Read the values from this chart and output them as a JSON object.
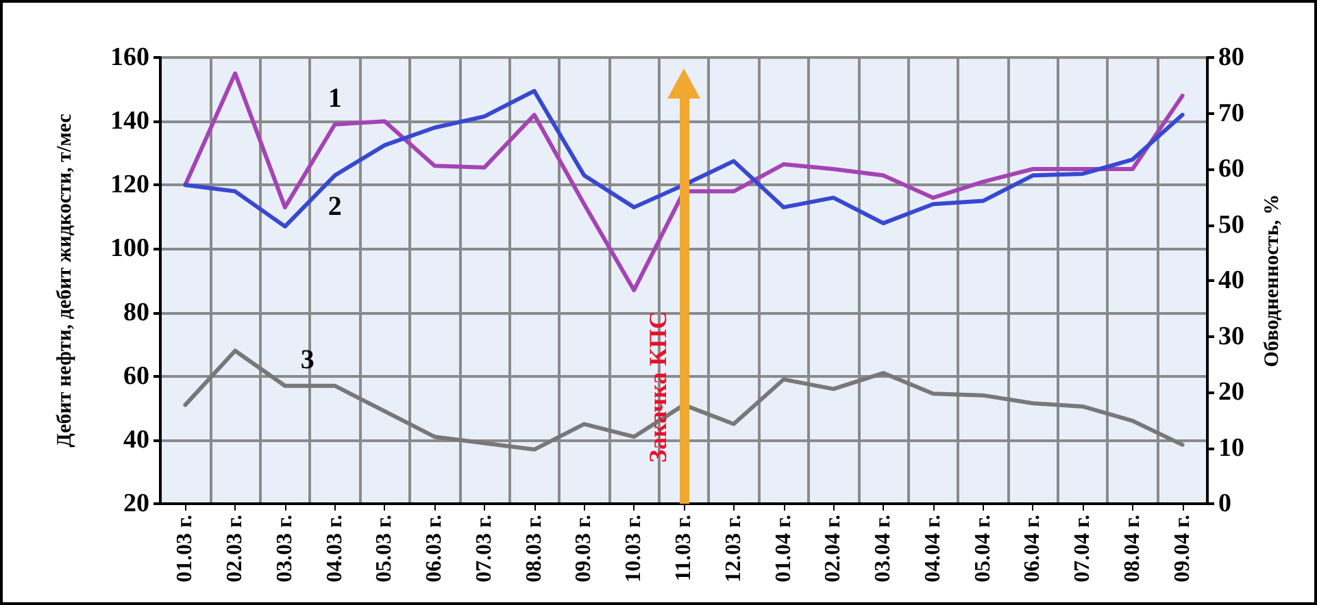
{
  "chart_data": {
    "type": "line",
    "ylabel": "Дебит нефти, дебит жидкости, т/мес",
    "y2label": "Обводненность, %",
    "categories": [
      "01.03 г.",
      "02.03 г.",
      "03.03 г.",
      "04.03 г.",
      "05.03 г.",
      "06.03 г.",
      "07.03 г.",
      "08.03 г.",
      "09.03 г.",
      "10.03 г.",
      "11.03 г.",
      "12.03 г.",
      "01.04 г.",
      "02.04 г.",
      "03.04 г.",
      "04.04 г.",
      "05.04 г.",
      "06.04 г.",
      "07.04 г.",
      "08.04 г.",
      "09.04 г."
    ],
    "series": [
      {
        "name": "1",
        "color": "#a444b4",
        "values": [
          120,
          155,
          113,
          139,
          140,
          126,
          125.5,
          142,
          114,
          87,
          118,
          118,
          126.5,
          125,
          123,
          116,
          121,
          125,
          125,
          125,
          148
        ]
      },
      {
        "name": "2",
        "color": "#3848d0",
        "values": [
          120,
          118,
          107,
          123,
          132.5,
          138,
          141.5,
          149.5,
          123,
          113,
          120,
          127.5,
          113,
          116,
          108,
          114,
          115,
          123,
          123.5,
          128,
          142
        ]
      },
      {
        "name": "3",
        "color": "#787878",
        "values": [
          51,
          68,
          57,
          57,
          49,
          41,
          39,
          37,
          45,
          41,
          51,
          45,
          59,
          56,
          61,
          54.5,
          54,
          51.5,
          50.5,
          46,
          38.5
        ]
      }
    ],
    "ylim": [
      20,
      160
    ],
    "yticks": [
      20,
      40,
      60,
      80,
      100,
      120,
      140,
      160
    ],
    "y2lim": [
      0,
      80
    ],
    "y2ticks": [
      0,
      10,
      20,
      30,
      40,
      50,
      60,
      70,
      80
    ],
    "ref_lines": [
      {
        "axis": "x",
        "value": "11.03 г.",
        "label": "Закачка КПС",
        "color": "#f0a830"
      }
    ],
    "grid": true,
    "legend": false,
    "marker": "none",
    "line_style": "solid"
  }
}
